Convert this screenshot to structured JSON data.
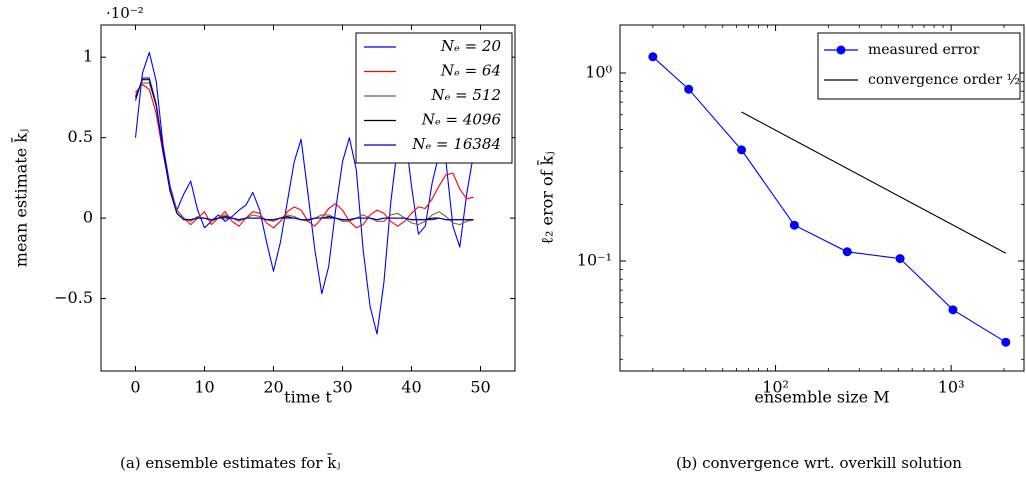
{
  "chart_data": [
    {
      "type": "line",
      "panel": "a",
      "caption": "(a)  ensemble estimates for k̄ⱼ",
      "xlabel": "time t",
      "ylabel": "mean estimate k̄ⱼ",
      "y_scale_note": "·10⁻²",
      "xlim": [
        -5,
        55
      ],
      "ylim": [
        -0.95,
        1.2
      ],
      "x_ticks": [
        0,
        10,
        20,
        30,
        40,
        50
      ],
      "y_ticks": [
        -0.5,
        0,
        0.5,
        1
      ],
      "y_tick_labels": [
        "−0.5",
        "0",
        "0.5",
        "1"
      ],
      "legend_position": "top-right",
      "x": [
        0,
        1,
        2,
        3,
        4,
        5,
        6,
        7,
        8,
        9,
        10,
        11,
        12,
        13,
        14,
        15,
        16,
        17,
        18,
        19,
        20,
        21,
        22,
        23,
        24,
        25,
        26,
        27,
        28,
        29,
        30,
        31,
        32,
        33,
        34,
        35,
        36,
        37,
        38,
        39,
        40,
        41,
        42,
        43,
        44,
        45,
        46,
        47,
        48,
        49
      ],
      "series": [
        {
          "name": "N_e = 20",
          "label": "Nₑ = 20",
          "color": "#0000ff",
          "values": [
            0.5,
            0.9,
            1.03,
            0.85,
            0.45,
            0.2,
            0.05,
            0.15,
            0.23,
            0.05,
            -0.06,
            -0.02,
            0.02,
            -0.02,
            0.01,
            0.05,
            0.08,
            0.16,
            0.05,
            -0.15,
            -0.33,
            -0.15,
            0.1,
            0.35,
            0.49,
            0.15,
            -0.2,
            -0.47,
            -0.3,
            0.05,
            0.35,
            0.5,
            0.3,
            -0.2,
            -0.55,
            -0.72,
            -0.4,
            0.1,
            0.45,
            0.55,
            0.2,
            -0.1,
            -0.05,
            0.22,
            0.4,
            0.35,
            -0.05,
            -0.18,
            0.15,
            0.4
          ]
        },
        {
          "name": "N_e = 64",
          "label": "Nₑ = 64",
          "color": "#ff0000",
          "values": [
            0.78,
            0.83,
            0.8,
            0.65,
            0.4,
            0.18,
            0.05,
            0.0,
            -0.04,
            0.0,
            0.04,
            -0.04,
            0.0,
            0.04,
            -0.02,
            -0.05,
            0.0,
            0.04,
            0.03,
            -0.03,
            -0.06,
            -0.02,
            0.04,
            0.07,
            0.05,
            -0.02,
            -0.05,
            0.0,
            0.06,
            0.09,
            0.05,
            -0.02,
            -0.06,
            -0.04,
            0.02,
            0.05,
            0.03,
            -0.02,
            -0.05,
            -0.02,
            0.03,
            0.07,
            0.06,
            0.12,
            0.2,
            0.27,
            0.28,
            0.18,
            0.12,
            0.13
          ]
        },
        {
          "name": "N_e = 512",
          "label": "Nₑ = 512",
          "color": "#8b5a2b",
          "values": [
            0.76,
            0.84,
            0.84,
            0.7,
            0.42,
            0.18,
            0.05,
            0.0,
            -0.02,
            0.01,
            0.0,
            -0.02,
            0.0,
            0.02,
            0.0,
            -0.02,
            0.0,
            0.02,
            0.01,
            -0.01,
            -0.02,
            0.0,
            0.02,
            0.01,
            -0.01,
            -0.02,
            0.0,
            0.02,
            0.02,
            0.0,
            -0.02,
            -0.02,
            0.0,
            0.02,
            0.0,
            -0.02,
            -0.02,
            0.02,
            0.03,
            0.0,
            -0.03,
            -0.04,
            -0.02,
            0.02,
            0.04,
            0.01,
            -0.03,
            -0.04,
            -0.02,
            -0.01
          ]
        },
        {
          "name": "N_e = 4096",
          "label": "Nₑ = 4096",
          "color": "#000000",
          "values": [
            0.75,
            0.86,
            0.86,
            0.7,
            0.42,
            0.17,
            0.03,
            -0.01,
            -0.01,
            0.0,
            0.0,
            -0.01,
            0.0,
            0.01,
            0.0,
            -0.01,
            0.0,
            0.0,
            0.0,
            -0.01,
            -0.01,
            0.0,
            0.01,
            0.0,
            -0.01,
            -0.01,
            0.0,
            0.0,
            0.01,
            0.0,
            -0.01,
            -0.01,
            0.0,
            0.0,
            0.0,
            -0.01,
            0.0,
            0.0,
            0.0,
            0.0,
            -0.01,
            -0.01,
            -0.01,
            0.0,
            0.0,
            -0.01,
            -0.01,
            -0.01,
            -0.01,
            -0.01
          ]
        },
        {
          "name": "N_e = 16384",
          "label": "Nₑ = 16384",
          "color": "#0000cc",
          "values": [
            0.73,
            0.87,
            0.87,
            0.71,
            0.42,
            0.17,
            0.03,
            -0.01,
            -0.01,
            0.0,
            0.0,
            -0.01,
            0.0,
            0.0,
            0.0,
            -0.01,
            0.0,
            0.0,
            0.0,
            -0.01,
            -0.01,
            0.0,
            0.0,
            0.0,
            -0.01,
            -0.01,
            0.0,
            0.0,
            0.0,
            0.0,
            -0.01,
            -0.01,
            0.0,
            0.0,
            0.0,
            -0.01,
            0.0,
            0.0,
            0.0,
            0.0,
            -0.01,
            -0.01,
            -0.01,
            -0.01,
            0.0,
            -0.01,
            -0.01,
            -0.01,
            -0.01,
            -0.01
          ]
        }
      ]
    },
    {
      "type": "line",
      "panel": "b",
      "caption": "(b)  convergence wrt. overkill solution",
      "xlabel": "ensemble size M",
      "ylabel": "ℓ₂ eror of k̄ⱼ",
      "x_scale": "log",
      "y_scale": "log",
      "xlim": [
        13,
        2600
      ],
      "ylim": [
        0.026,
        1.8
      ],
      "x_ticks": [
        100,
        1000
      ],
      "x_tick_labels": [
        "10²",
        "10³"
      ],
      "y_ticks": [
        0.1,
        1
      ],
      "y_tick_labels": [
        "10⁻¹",
        "10⁰"
      ],
      "legend_position": "top-right",
      "series": [
        {
          "name": "measured error",
          "label": "measured error",
          "color": "#0000ff",
          "x": [
            20,
            32,
            64,
            128,
            256,
            512,
            1024,
            2048
          ],
          "values": [
            1.22,
            0.82,
            0.39,
            0.155,
            0.112,
            0.103,
            0.055,
            0.037
          ]
        },
        {
          "name": "convergence order 1/2",
          "label": "convergence order ½",
          "color": "#000000",
          "x": [
            64,
            2048
          ],
          "values": [
            0.62,
            0.11
          ]
        }
      ]
    }
  ]
}
